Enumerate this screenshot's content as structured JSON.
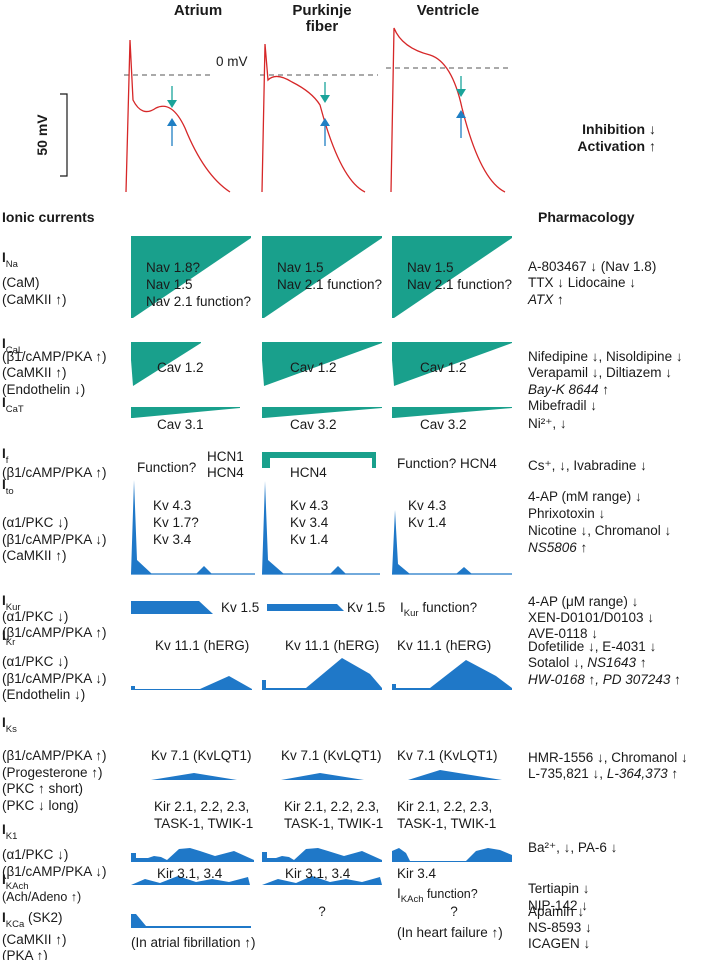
{
  "columns": [
    "Atrium",
    "Purkinje\nfiber",
    "Ventricle"
  ],
  "zero_mv_label": "0 mV",
  "scale_bar_label": "50 mV",
  "legend": {
    "inhibition": "Inhibition ↓",
    "activation": "Activation ↑"
  },
  "section_headers": {
    "left": "Ionic currents",
    "right": "Pharmacology"
  },
  "colors": {
    "ap_trace": "#d62728",
    "inhibit_arrow": "#1aa39a",
    "activate_arrow": "#1f7fc4",
    "teal_current": "#19a08c",
    "blue_current": "#1f78c8"
  },
  "rows": [
    {
      "main": "I",
      "sub": "Na",
      "modulators": [
        "(CaM)",
        "(CaMKII ↑)"
      ],
      "cells": [
        [
          "Nav 1.8?",
          "Nav 1.5",
          "Nav 2.1 function?"
        ],
        [
          "Nav 1.5",
          "Nav 2.1 function?"
        ],
        [
          "Nav 1.5",
          "Nav 2.1 function?"
        ]
      ],
      "pharm": [
        {
          "t": "A-803467 ↓ (Nav 1.8)"
        },
        {
          "t": "TTX ↓ Lidocaine ↓"
        },
        {
          "t": "ATX ↑",
          "i": true
        }
      ]
    },
    {
      "main": "I",
      "sub": "CaL",
      "modulators": [
        "(β1/cAMP/PKA ↑)",
        "(CaMKII ↑)",
        "(Endothelin ↓)"
      ],
      "cells": [
        [
          "Cav 1.2"
        ],
        [
          "Cav 1.2"
        ],
        [
          "Cav 1.2"
        ]
      ],
      "pharm": [
        {
          "t": "Nifedipine ↓, Nisoldipine  ↓"
        },
        {
          "t": "Verapamil ↓, Diltiazem ↓"
        },
        {
          "t": "Bay-K 8644 ↑",
          "i": true
        }
      ]
    },
    {
      "main": "I",
      "sub": "CaT",
      "modulators": [],
      "cells": [
        [
          "Cav 3.1"
        ],
        [
          "Cav 3.2"
        ],
        [
          "Cav 3.2"
        ]
      ],
      "pharm": [
        {
          "t": "Mibefradil ↓"
        },
        {
          "t": "Ni²⁺, ↓"
        }
      ]
    },
    {
      "main": "I",
      "sub": "f",
      "modulators": [
        "(β1/cAMP/PKA ↑)"
      ],
      "cells": [
        [
          "Function?",
          "HCN1",
          "HCN4"
        ],
        [
          "HCN4"
        ],
        [
          "Function? HCN4"
        ]
      ],
      "pharm": [
        {
          "t": "Cs⁺, ↓, Ivabradine ↓"
        }
      ]
    },
    {
      "main": "I",
      "sub": "to",
      "modulators": [
        "(α1/PKC ↓)",
        "(β1/cAMP/PKA ↓)",
        "(CaMKII ↑)"
      ],
      "cells": [
        [
          "Kv 4.3",
          "Kv 1.7?",
          "Kv 3.4"
        ],
        [
          "Kv 4.3",
          "Kv 3.4",
          "Kv 1.4"
        ],
        [
          "Kv 4.3",
          "Kv 1.4"
        ]
      ],
      "pharm": [
        {
          "t": "4-AP (mM range) ↓"
        },
        {
          "t": "Phrixotoxin ↓"
        },
        {
          "t": "Nicotine ↓, Chromanol ↓"
        },
        {
          "t": "NS5806 ↑",
          "i": true
        }
      ]
    },
    {
      "main": "I",
      "sub": "Kur",
      "modulators": [
        "(α1/PKC ↓)",
        "(β1/cAMP/PKA ↑)"
      ],
      "cells": [
        [
          "Kv 1.5"
        ],
        [
          "Kv 1.5"
        ],
        [
          "I",
          "Kur",
          " function?"
        ]
      ],
      "pharm": [
        {
          "t": "4-AP (μM range) ↓"
        },
        {
          "t": "XEN-D0101/D0103 ↓"
        },
        {
          "t": "AVE-0118 ↓"
        }
      ]
    },
    {
      "main": "I",
      "sub": "Kr",
      "modulators": [
        "(α1/PKC ↓)",
        "(β1/cAMP/PKA ↓)",
        "(Endothelin ↓)"
      ],
      "cells": [
        [
          "Kv 11.1 (hERG)"
        ],
        [
          "Kv 11.1 (hERG)"
        ],
        [
          "Kv 11.1 (hERG)"
        ]
      ],
      "pharm": [
        {
          "t": "Dofetilide ↓, E-4031 ↓"
        },
        {
          "t": "Sotalol ↓, ",
          "t2": "NS1643 ↑"
        },
        {
          "t": "HW-0168 ↑, PD 307243 ↑",
          "i": true
        }
      ]
    },
    {
      "main": "I",
      "sub": "Ks",
      "modulators": [
        "(β1/cAMP/PKA ↑)",
        "(Progesterone ↑)",
        "(PKC ↑ short)",
        "(PKC ↓ long)"
      ],
      "cells": [
        [
          "Kv 7.1 (KvLQT1)"
        ],
        [
          "Kv 7.1 (KvLQT1)"
        ],
        [
          "Kv 7.1 (KvLQT1)"
        ]
      ],
      "pharm": [
        {
          "t": "HMR-1556 ↓, Chromanol ↓"
        },
        {
          "t": "L-735,821 ↓, ",
          "t2": "L-364,373 ↑"
        }
      ]
    },
    {
      "main": "I",
      "sub": "K1",
      "modulators": [
        "(α1/PKC ↓)",
        "(β1/cAMP/PKA ↓)"
      ],
      "cells": [
        [
          "Kir 2.1, 2.2, 2.3,",
          "TASK-1, TWIK-1"
        ],
        [
          "Kir 2.1, 2.2, 2.3,",
          "TASK-1, TWIK-1"
        ],
        [
          "Kir 2.1, 2.2, 2.3,",
          "TASK-1, TWIK-1"
        ]
      ],
      "pharm": [
        {
          "t": "Ba²⁺, ↓, PA-6 ↓"
        }
      ]
    },
    {
      "main": "I",
      "sub": "KAch",
      "modulators": [
        "(Ach/Adeno ↑)"
      ],
      "cells": [
        [
          "Kir 3.1, 3.4"
        ],
        [
          "Kir 3.1, 3.4"
        ],
        [
          "Kir 3.4",
          "I",
          "KAch",
          " function?"
        ]
      ],
      "pharm": [
        {
          "t": "Tertiapin ↓"
        },
        {
          "t": "NIP-142 ↓"
        }
      ]
    },
    {
      "main": "I",
      "sub": "KCa",
      "main_suffix": " (SK2)",
      "modulators": [
        "(CaMKII ↑)",
        "(PKA ↑)"
      ],
      "cells": [
        [
          "(In atrial fibrillation ↑)"
        ],
        [
          "?"
        ],
        [
          "?",
          "(In heart failure ↑)"
        ]
      ],
      "pharm": [
        {
          "t": "Apamin ↓"
        },
        {
          "t": "NS-8593 ↓"
        },
        {
          "t": "ICAGEN ↓"
        }
      ]
    }
  ]
}
